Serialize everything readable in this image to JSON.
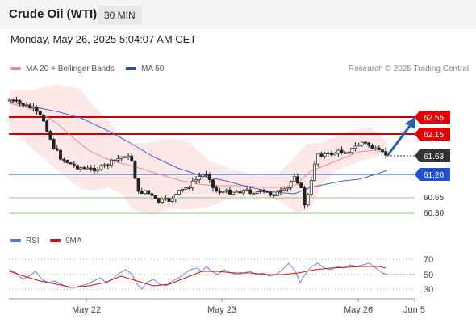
{
  "header": {
    "title": "Crude Oil (WTI)",
    "timeframe": "30 MIN"
  },
  "datetime": "Monday, May 26, 2025 5:04:07 AM CET",
  "legend": {
    "ma20": "MA 20 + Bollinger Bands",
    "ma50": "MA 50",
    "credit": "Research © 2025 Trading Central"
  },
  "rsi_legend": {
    "rsi": "RSI",
    "ma9": "9MA"
  },
  "colors": {
    "resistance": "#cc0000",
    "support": "#2255cc",
    "target_arrow": "#2b5ea8",
    "last_price": "#333333",
    "ma20": "#e88",
    "ma50": "#4466bb",
    "bollinger_fill": "#fde2e2",
    "pivot_line": "#7bbf6a"
  },
  "price_levels": [
    {
      "label": "62.55",
      "type": "resistance"
    },
    {
      "label": "62.15",
      "type": "resistance"
    },
    {
      "label": "61.63",
      "type": "last"
    },
    {
      "label": "61.20",
      "type": "pivot"
    },
    {
      "label": "60.65",
      "type": "support"
    },
    {
      "label": "60.30",
      "type": "support"
    }
  ],
  "rsi_ticks": [
    "70",
    "50",
    "30"
  ],
  "x_axis": [
    "May 22",
    "May 23",
    "May 26",
    "Jun 5"
  ]
}
